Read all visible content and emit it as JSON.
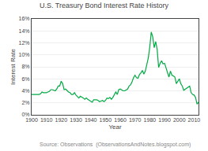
{
  "chart_data": {
    "type": "line",
    "title": "U.S. Treasury Bond Interest Rate History",
    "xlabel": "Year",
    "ylabel": "Interest Rate",
    "annotations": [
      "Source: Observations  (ObservationsAndNotes.blogspot.com)"
    ],
    "color": "#00aa44",
    "grid": true,
    "xlim": [
      1900,
      2013
    ],
    "xticks": [
      1900,
      1910,
      1920,
      1930,
      1940,
      1950,
      1960,
      1970,
      1980,
      1990,
      2000,
      2010
    ],
    "ylim": [
      0,
      0.16
    ],
    "yticks": [
      {
        "value": 0.0,
        "label": "0%"
      },
      {
        "value": 0.02,
        "label": "2%"
      },
      {
        "value": 0.04,
        "label": "4%"
      },
      {
        "value": 0.06,
        "label": "6%"
      },
      {
        "value": 0.08,
        "label": "8%"
      },
      {
        "value": 0.1,
        "label": "10%"
      },
      {
        "value": 0.12,
        "label": "12%"
      },
      {
        "value": 0.14,
        "label": "14%"
      },
      {
        "value": 0.16,
        "label": "16%"
      }
    ],
    "x": [
      1900,
      1901,
      1902,
      1903,
      1904,
      1905,
      1906,
      1907,
      1908,
      1909,
      1910,
      1911,
      1912,
      1913,
      1914,
      1915,
      1916,
      1917,
      1918,
      1919,
      1920,
      1921,
      1922,
      1923,
      1924,
      1925,
      1926,
      1927,
      1928,
      1929,
      1930,
      1931,
      1932,
      1933,
      1934,
      1935,
      1936,
      1937,
      1938,
      1939,
      1940,
      1941,
      1942,
      1943,
      1944,
      1945,
      1946,
      1947,
      1948,
      1949,
      1950,
      1951,
      1952,
      1953,
      1954,
      1955,
      1956,
      1957,
      1958,
      1959,
      1960,
      1961,
      1962,
      1963,
      1964,
      1965,
      1966,
      1967,
      1968,
      1969,
      1970,
      1971,
      1972,
      1973,
      1974,
      1975,
      1976,
      1977,
      1978,
      1979,
      1980,
      1981,
      1982,
      1983,
      1984,
      1985,
      1986,
      1987,
      1988,
      1989,
      1990,
      1991,
      1992,
      1993,
      1994,
      1995,
      1996,
      1997,
      1998,
      1999,
      2000,
      2001,
      2002,
      2003,
      2004,
      2005,
      2006,
      2007,
      2008,
      2009,
      2010,
      2011,
      2012,
      2013
    ],
    "values": [
      0.034,
      0.034,
      0.034,
      0.034,
      0.034,
      0.034,
      0.035,
      0.038,
      0.037,
      0.037,
      0.037,
      0.038,
      0.039,
      0.042,
      0.042,
      0.041,
      0.04,
      0.043,
      0.048,
      0.048,
      0.056,
      0.052,
      0.042,
      0.043,
      0.04,
      0.038,
      0.037,
      0.034,
      0.034,
      0.037,
      0.033,
      0.03,
      0.028,
      0.031,
      0.03,
      0.028,
      0.026,
      0.028,
      0.026,
      0.024,
      0.022,
      0.021,
      0.025,
      0.025,
      0.025,
      0.024,
      0.022,
      0.023,
      0.024,
      0.022,
      0.024,
      0.028,
      0.027,
      0.029,
      0.026,
      0.029,
      0.033,
      0.038,
      0.034,
      0.042,
      0.043,
      0.041,
      0.04,
      0.04,
      0.041,
      0.043,
      0.048,
      0.05,
      0.055,
      0.062,
      0.066,
      0.062,
      0.061,
      0.067,
      0.07,
      0.074,
      0.068,
      0.073,
      0.084,
      0.095,
      0.113,
      0.138,
      0.13,
      0.112,
      0.122,
      0.109,
      0.079,
      0.086,
      0.09,
      0.085,
      0.086,
      0.079,
      0.072,
      0.063,
      0.073,
      0.066,
      0.065,
      0.063,
      0.052,
      0.057,
      0.06,
      0.052,
      0.048,
      0.041,
      0.043,
      0.044,
      0.047,
      0.048,
      0.037,
      0.034,
      0.033,
      0.029,
      0.018,
      0.021
    ]
  }
}
